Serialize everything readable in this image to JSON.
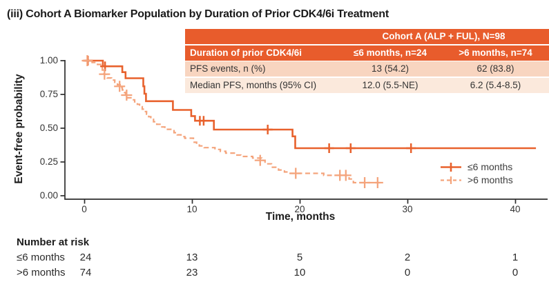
{
  "title": "(iii) Cohort A Biomarker Population by Duration of Prior CDK4/6i Treatment",
  "summary_table": {
    "header_row1": "Cohort A (ALP + FUL), N=98",
    "header_row2": [
      "Duration of prior CDK4/6i",
      "≤6 months, n=24",
      ">6 months, n=74"
    ],
    "rows": [
      {
        "label": "PFS events, n (%)",
        "col1": "13 (54.2)",
        "col2": "62 (83.8)"
      },
      {
        "label": "Median PFS, months (95% CI)",
        "col1": "12.0 (5.5-NE)",
        "col2": "6.2 (5.4-8.5)"
      }
    ]
  },
  "chart_data": {
    "type": "line",
    "subtype": "kaplan-meier-step",
    "xlabel": "Time, months",
    "ylabel": "Event-free probability",
    "xticks": [
      0,
      10,
      20,
      30,
      40
    ],
    "yticks": [
      "0.00",
      "0.25",
      "0.50",
      "0.75",
      "1.00"
    ],
    "xlim": [
      0,
      43
    ],
    "ylim": [
      0,
      1
    ],
    "grid": false,
    "legend_position": "bottom-right",
    "axis_color": "#2d2d2d",
    "series": [
      {
        "name": "≤6 months",
        "style": "solid",
        "color": "#E8612C",
        "points": [
          [
            0,
            1.0
          ],
          [
            1.7,
            0.958
          ],
          [
            3.5,
            0.915
          ],
          [
            3.8,
            0.87
          ],
          [
            5.45,
            0.81
          ],
          [
            5.55,
            0.755
          ],
          [
            5.7,
            0.7
          ],
          [
            8.2,
            0.635
          ],
          [
            9.9,
            0.59
          ],
          [
            10.25,
            0.555
          ],
          [
            12.0,
            0.49
          ],
          [
            19.3,
            0.44
          ],
          [
            19.55,
            0.352
          ]
        ],
        "end_t": 41.9,
        "censors": [
          [
            0.3,
            1.0
          ],
          [
            1.9,
            0.958
          ],
          [
            10.7,
            0.555
          ],
          [
            11.05,
            0.555
          ],
          [
            17.0,
            0.49
          ],
          [
            22.7,
            0.352
          ],
          [
            24.7,
            0.352
          ],
          [
            30.3,
            0.352
          ]
        ]
      },
      {
        "name": ">6 months",
        "style": "dashed",
        "color": "#F4A47C",
        "points": [
          [
            0,
            1.0
          ],
          [
            0.7,
            0.986
          ],
          [
            1.2,
            0.972
          ],
          [
            1.5,
            0.958
          ],
          [
            1.65,
            0.93
          ],
          [
            1.8,
            0.9
          ],
          [
            2.1,
            0.872
          ],
          [
            2.5,
            0.856
          ],
          [
            2.8,
            0.84
          ],
          [
            3.05,
            0.822
          ],
          [
            3.3,
            0.8
          ],
          [
            3.5,
            0.783
          ],
          [
            3.7,
            0.765
          ],
          [
            3.8,
            0.745
          ],
          [
            4.0,
            0.725
          ],
          [
            4.3,
            0.71
          ],
          [
            4.65,
            0.695
          ],
          [
            4.9,
            0.677
          ],
          [
            5.1,
            0.659
          ],
          [
            5.35,
            0.641
          ],
          [
            5.55,
            0.623
          ],
          [
            5.75,
            0.604
          ],
          [
            5.95,
            0.585
          ],
          [
            6.15,
            0.566
          ],
          [
            6.4,
            0.548
          ],
          [
            6.7,
            0.529
          ],
          [
            7.0,
            0.509
          ],
          [
            7.45,
            0.492
          ],
          [
            8.3,
            0.467
          ],
          [
            8.6,
            0.451
          ],
          [
            8.95,
            0.438
          ],
          [
            9.3,
            0.426
          ],
          [
            10.1,
            0.396
          ],
          [
            10.4,
            0.381
          ],
          [
            10.65,
            0.369
          ],
          [
            11.1,
            0.356
          ],
          [
            12.1,
            0.343
          ],
          [
            12.6,
            0.329
          ],
          [
            13.1,
            0.316
          ],
          [
            13.9,
            0.301
          ],
          [
            14.5,
            0.291
          ],
          [
            15.6,
            0.279
          ],
          [
            16.45,
            0.262
          ],
          [
            16.75,
            0.236
          ],
          [
            17.35,
            0.211
          ],
          [
            18.0,
            0.191
          ],
          [
            18.55,
            0.176
          ],
          [
            18.95,
            0.166
          ],
          [
            22.2,
            0.151
          ],
          [
            24.55,
            0.124
          ],
          [
            24.95,
            0.097
          ]
        ],
        "end_t": 27.7,
        "censors": [
          [
            0.25,
            1.0
          ],
          [
            1.85,
            0.9
          ],
          [
            3.25,
            0.81
          ],
          [
            3.9,
            0.745
          ],
          [
            16.3,
            0.262
          ],
          [
            19.6,
            0.166
          ],
          [
            23.7,
            0.151
          ],
          [
            24.25,
            0.151
          ],
          [
            26.0,
            0.097
          ],
          [
            27.2,
            0.097
          ]
        ]
      }
    ]
  },
  "legend": {
    "items": [
      {
        "label": "≤6 months"
      },
      {
        "label": ">6 months"
      }
    ]
  },
  "number_at_risk": {
    "title": "Number at risk",
    "rows": [
      {
        "label": "≤6 months",
        "values": [
          24,
          13,
          5,
          2,
          1
        ]
      },
      {
        "label": ">6 months",
        "values": [
          74,
          23,
          10,
          0,
          0
        ]
      }
    ]
  },
  "colors": {
    "curve_solid": "#E8612C",
    "curve_dashed": "#F4A47C",
    "table_header_bg": "#E85C2C",
    "table_row1_bg": "#F8D5C0",
    "table_row2_bg": "#FBE9DC",
    "axis": "#2d2d2d"
  }
}
